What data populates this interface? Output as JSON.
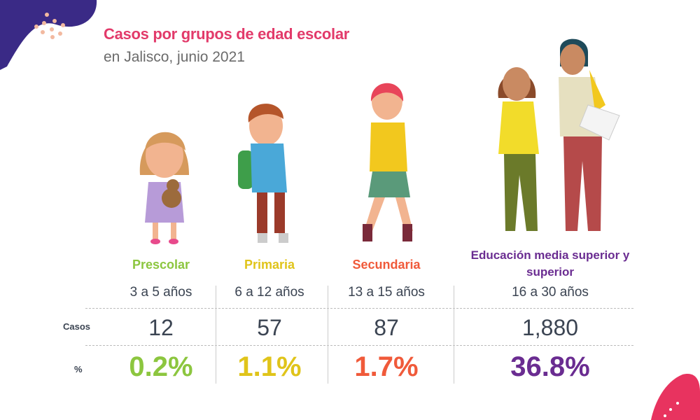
{
  "header": {
    "title": "Casos por grupos de edad escolar",
    "subtitle": "en Jalisco, junio 2021"
  },
  "row_labels": {
    "cases": "Casos",
    "percent": "%"
  },
  "groups": [
    {
      "name": "Prescolar",
      "ages": "3 a 5 años",
      "cases": "12",
      "percent": "0.2%",
      "color": "#8cc63f"
    },
    {
      "name": "Primaria",
      "ages": "6 a 12 años",
      "cases": "57",
      "percent": "1.1%",
      "color": "#e0c41a"
    },
    {
      "name": "Secundaria",
      "ages": "13 a 15 años",
      "cases": "87",
      "percent": "1.7%",
      "color": "#f05a3a"
    },
    {
      "name": "Educación media superior y superior",
      "ages": "16 a 30 años",
      "cases": "1,880",
      "percent": "36.8%",
      "color": "#6a2c91"
    }
  ],
  "colors": {
    "title": "#e23a6a",
    "blob_top": "#3a2a86",
    "blob_bottom": "#e8335f"
  }
}
